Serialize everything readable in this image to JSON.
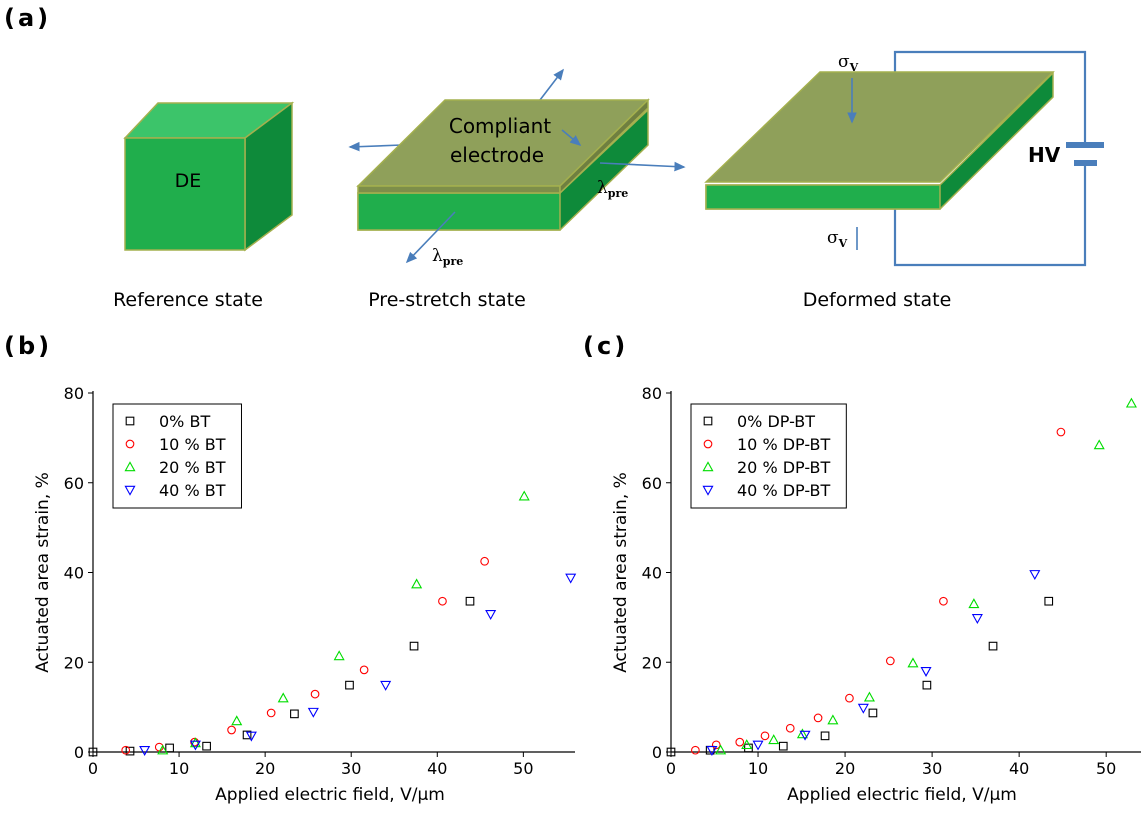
{
  "diagram": {
    "panel_label": "(a)",
    "reference": {
      "text": "DE",
      "caption": "Reference state"
    },
    "prestretch": {
      "text": [
        "Compliant",
        "electrode"
      ],
      "strain": [
        {
          "symbol": "λ",
          "sub": "pre"
        },
        {
          "symbol": "λ",
          "sub": "pre"
        }
      ],
      "caption": "Pre-stretch state"
    },
    "deformed": {
      "stress": [
        {
          "symbol": "σ",
          "sub": "V"
        },
        {
          "symbol": "σ",
          "sub": "V"
        }
      ],
      "voltage": "HV",
      "caption": "Deformed state"
    }
  },
  "chart_data": [
    {
      "type": "scatter",
      "panel_label": "(b)",
      "x_label": "Applied electric field, V/μm",
      "y_label": "Actuated area strain, %",
      "xlim": [
        0,
        56
      ],
      "ylim": [
        0,
        80
      ],
      "xticks": [
        0,
        10,
        20,
        30,
        40,
        50
      ],
      "yticks": [
        0,
        20,
        40,
        60,
        80
      ],
      "legend": "upper left",
      "series": [
        {
          "name": "0% BT",
          "color": "#000000",
          "marker": "square",
          "x": [
            0,
            4.3,
            8.9,
            13.2,
            17.9,
            23.4,
            29.8,
            37.3,
            43.8
          ],
          "values": [
            0,
            0.2,
            0.9,
            1.3,
            3.8,
            8.5,
            14.9,
            23.6,
            33.6
          ]
        },
        {
          "name": "10 % BT",
          "color": "#ff0000",
          "marker": "circle",
          "x": [
            3.8,
            7.7,
            11.8,
            16.1,
            20.7,
            25.8,
            31.5,
            40.6,
            45.5
          ],
          "values": [
            0.4,
            1.1,
            2.2,
            4.9,
            8.7,
            12.9,
            18.3,
            33.6,
            42.5
          ]
        },
        {
          "name": "20 % BT",
          "color": "#00dd00",
          "marker": "triangle-up",
          "x": [
            8.1,
            11.9,
            16.7,
            22.1,
            28.6,
            37.6,
            50.1
          ],
          "values": [
            0.4,
            2.0,
            6.9,
            12.0,
            21.4,
            37.4,
            57.0
          ]
        },
        {
          "name": "40 % BT",
          "color": "#0000ff",
          "marker": "triangle-down",
          "x": [
            6.0,
            11.9,
            18.4,
            25.6,
            34.0,
            46.2,
            55.5
          ],
          "values": [
            0.4,
            1.6,
            3.6,
            8.9,
            14.9,
            30.7,
            38.8
          ]
        }
      ]
    },
    {
      "type": "scatter",
      "panel_label": "(c)",
      "x_label": "Applied electric field, V/μm",
      "y_label": "Actuated area strain, %",
      "xlim": [
        0,
        54
      ],
      "ylim": [
        0,
        80
      ],
      "xticks": [
        0,
        10,
        20,
        30,
        40,
        50
      ],
      "yticks": [
        0,
        20,
        40,
        60,
        80
      ],
      "legend": "upper left",
      "series": [
        {
          "name": "0% DP-BT",
          "color": "#000000",
          "marker": "square",
          "x": [
            0,
            4.5,
            8.9,
            12.9,
            17.7,
            23.2,
            29.4,
            37.0,
            43.4
          ],
          "values": [
            0,
            0.4,
            0.9,
            1.3,
            3.6,
            8.7,
            14.9,
            23.6,
            33.6
          ]
        },
        {
          "name": "10 % DP-BT",
          "color": "#ff0000",
          "marker": "circle",
          "x": [
            2.8,
            5.2,
            7.9,
            10.8,
            13.7,
            16.9,
            20.5,
            25.2,
            31.3,
            44.8
          ],
          "values": [
            0.4,
            1.6,
            2.2,
            3.6,
            5.3,
            7.6,
            12.0,
            20.3,
            33.6,
            71.3
          ]
        },
        {
          "name": "20 % DP-BT",
          "color": "#00dd00",
          "marker": "triangle-up",
          "x": [
            5.7,
            8.7,
            11.8,
            15.1,
            18.6,
            22.8,
            27.8,
            34.8,
            49.2,
            52.9
          ],
          "values": [
            0.4,
            1.6,
            2.7,
            4.0,
            7.1,
            12.2,
            19.8,
            33.0,
            68.4,
            77.7
          ]
        },
        {
          "name": "40 % DP-BT",
          "color": "#0000ff",
          "marker": "triangle-down",
          "x": [
            4.7,
            10.0,
            15.4,
            22.1,
            29.3,
            35.2,
            41.8
          ],
          "values": [
            0.4,
            1.6,
            3.8,
            9.8,
            18.0,
            29.8,
            39.6
          ]
        }
      ]
    }
  ]
}
